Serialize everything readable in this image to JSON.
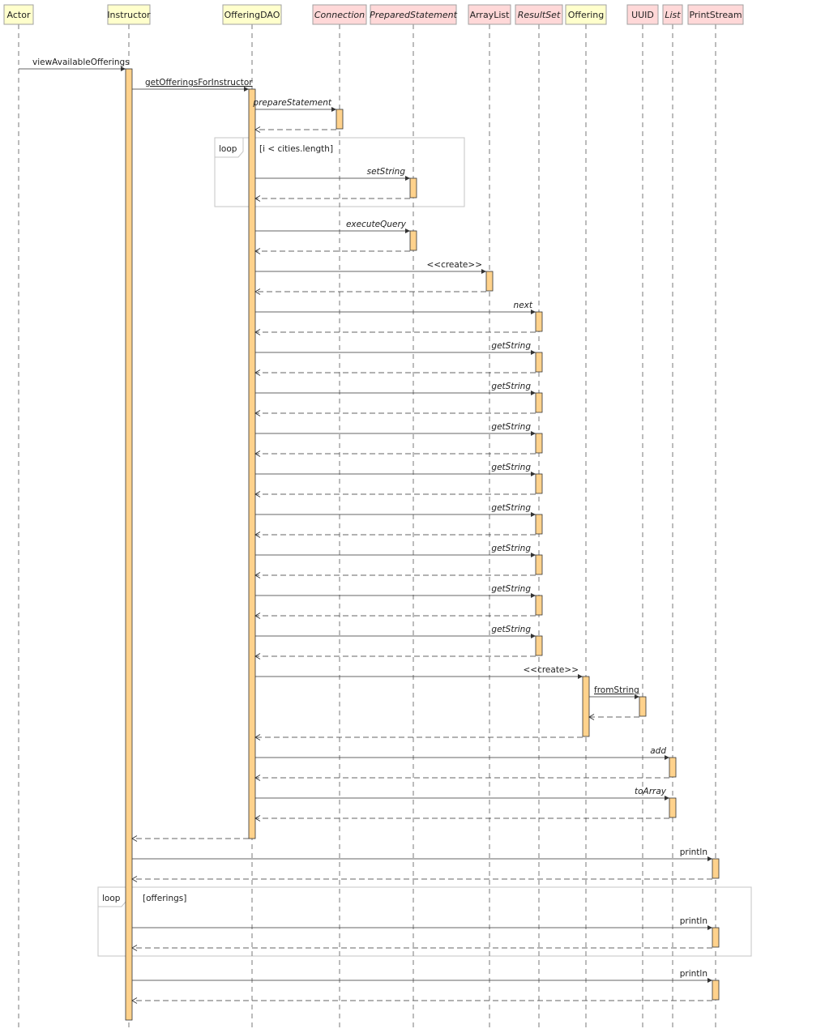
{
  "participants": [
    {
      "name": "Actor",
      "kind": "class"
    },
    {
      "name": "Instructor",
      "kind": "class"
    },
    {
      "name": "OfferingDAO",
      "kind": "class"
    },
    {
      "name": "Connection",
      "kind": "interface"
    },
    {
      "name": "PreparedStatement",
      "kind": "interface"
    },
    {
      "name": "ArrayList",
      "kind": "library"
    },
    {
      "name": "ResultSet",
      "kind": "interface"
    },
    {
      "name": "Offering",
      "kind": "class"
    },
    {
      "name": "UUID",
      "kind": "library"
    },
    {
      "name": "List",
      "kind": "interface"
    },
    {
      "name": "PrintStream",
      "kind": "library"
    }
  ],
  "colors": {
    "class_fill": "#ffffcc",
    "library_fill": "#ffd8d8",
    "interface_fill": "#ffd8d8",
    "activation": "#ffd28c"
  },
  "messages": [
    {
      "label": "viewAvailableOfferings",
      "from": "Actor",
      "to": "Instructor",
      "underline": false,
      "italic": false
    },
    {
      "label": "getOfferingsForInstructor",
      "from": "Instructor",
      "to": "OfferingDAO",
      "underline": true,
      "italic": false
    },
    {
      "label": "prepareStatement",
      "from": "OfferingDAO",
      "to": "Connection",
      "italic": true
    },
    {
      "label": "setString",
      "from": "OfferingDAO",
      "to": "PreparedStatement",
      "italic": true
    },
    {
      "label": "executeQuery",
      "from": "OfferingDAO",
      "to": "PreparedStatement",
      "italic": true
    },
    {
      "label": "<<create>>",
      "from": "OfferingDAO",
      "to": "ArrayList",
      "italic": false
    },
    {
      "label": "next",
      "from": "OfferingDAO",
      "to": "ResultSet",
      "italic": true
    },
    {
      "label": "getString",
      "from": "OfferingDAO",
      "to": "ResultSet",
      "italic": true
    },
    {
      "label": "getString",
      "from": "OfferingDAO",
      "to": "ResultSet",
      "italic": true
    },
    {
      "label": "getString",
      "from": "OfferingDAO",
      "to": "ResultSet",
      "italic": true
    },
    {
      "label": "getString",
      "from": "OfferingDAO",
      "to": "ResultSet",
      "italic": true
    },
    {
      "label": "getString",
      "from": "OfferingDAO",
      "to": "ResultSet",
      "italic": true
    },
    {
      "label": "getString",
      "from": "OfferingDAO",
      "to": "ResultSet",
      "italic": true
    },
    {
      "label": "getString",
      "from": "OfferingDAO",
      "to": "ResultSet",
      "italic": true
    },
    {
      "label": "getString",
      "from": "OfferingDAO",
      "to": "ResultSet",
      "italic": true
    },
    {
      "label": "<<create>>",
      "from": "OfferingDAO",
      "to": "Offering",
      "italic": false
    },
    {
      "label": "fromString",
      "from": "Offering",
      "to": "UUID",
      "underline": true,
      "italic": false
    },
    {
      "label": "add",
      "from": "OfferingDAO",
      "to": "List",
      "italic": true
    },
    {
      "label": "toArray",
      "from": "OfferingDAO",
      "to": "List",
      "italic": true
    },
    {
      "label": "println",
      "from": "Instructor",
      "to": "PrintStream",
      "italic": false
    },
    {
      "label": "println",
      "from": "Instructor",
      "to": "PrintStream",
      "italic": false
    },
    {
      "label": "println",
      "from": "Instructor",
      "to": "PrintStream",
      "italic": false
    }
  ],
  "fragments": [
    {
      "operator": "loop",
      "guard": "[i < cities.length]"
    },
    {
      "operator": "loop",
      "guard": "[offerings]"
    }
  ]
}
